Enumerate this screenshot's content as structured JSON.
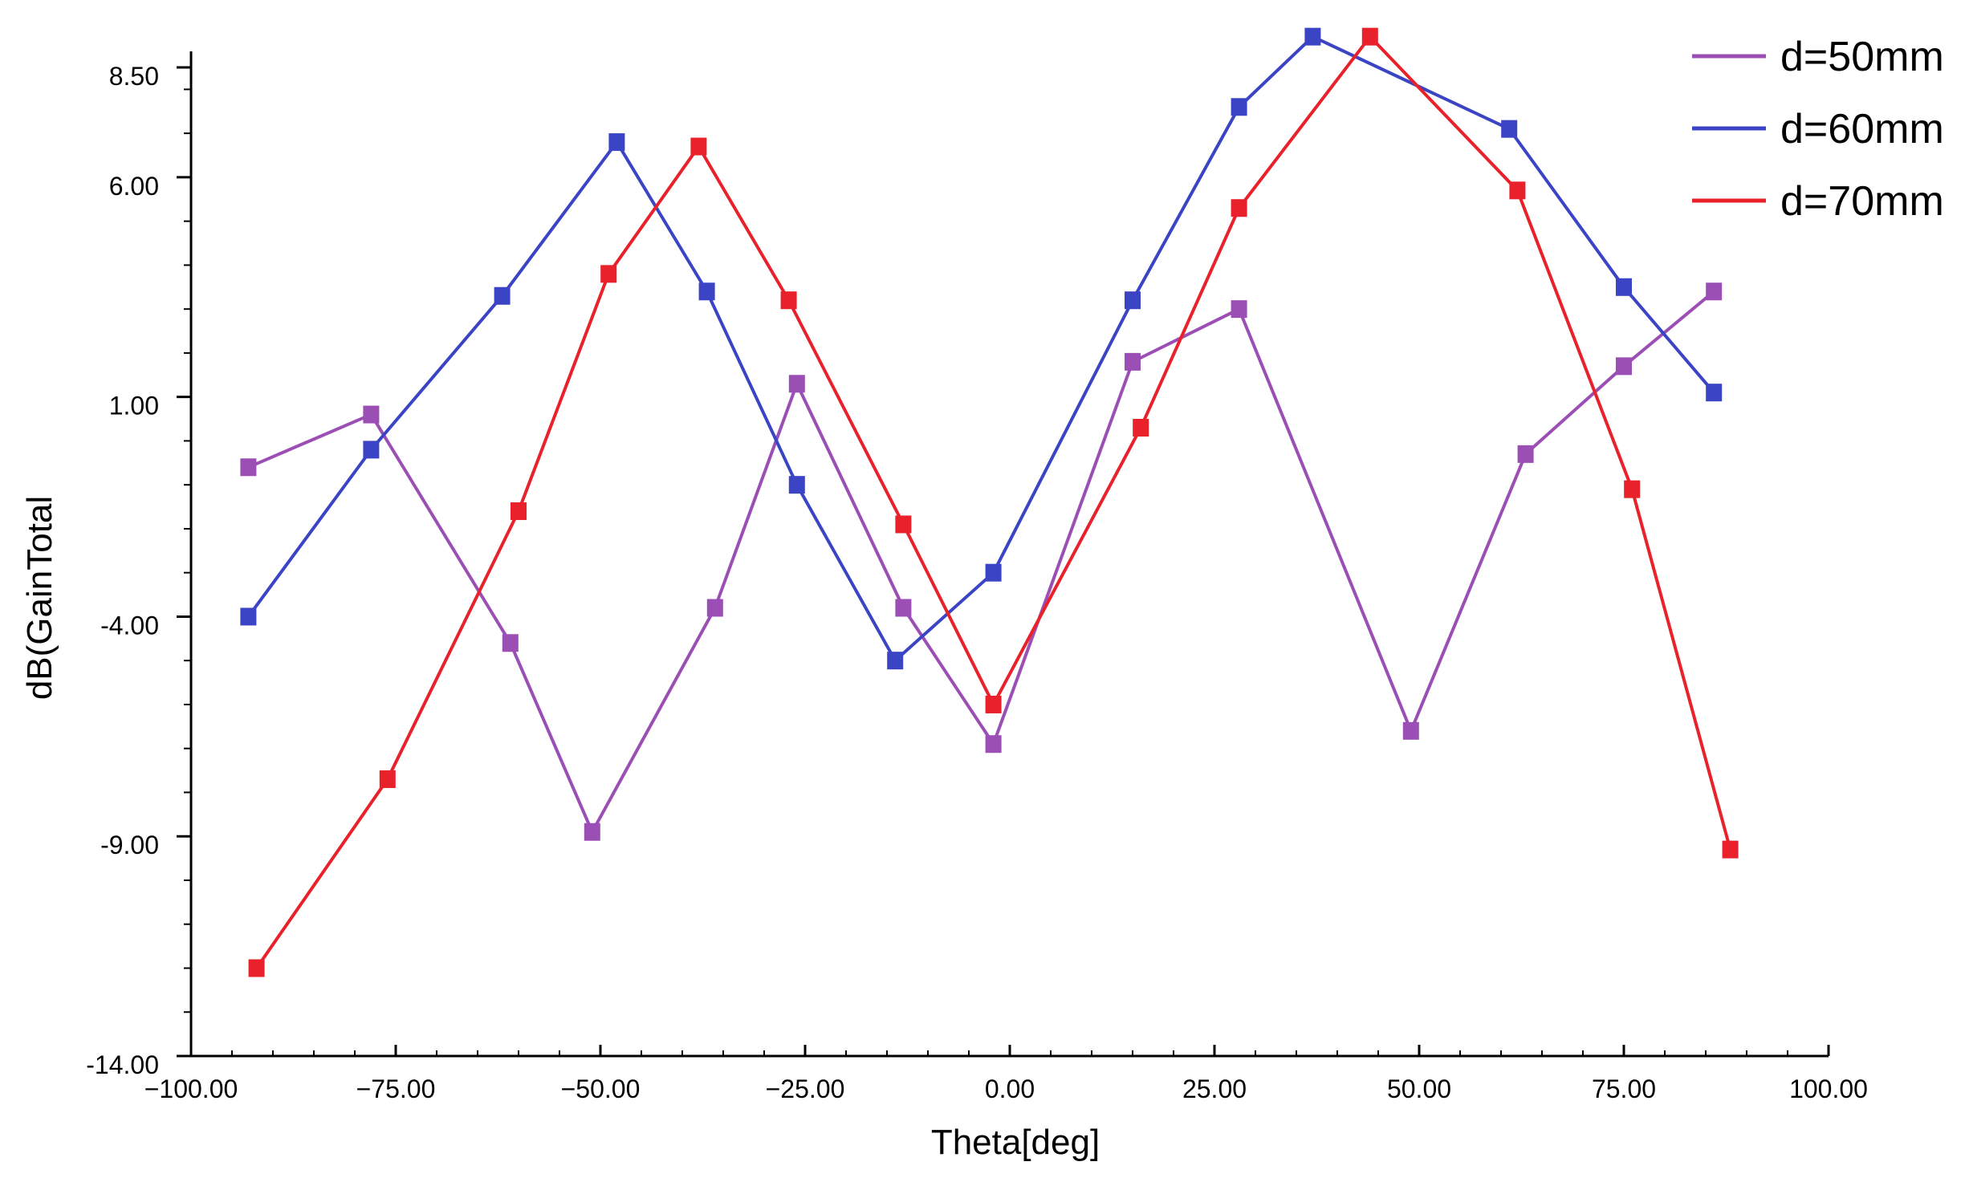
{
  "chart_data": {
    "type": "line",
    "xlabel": "Theta[deg]",
    "ylabel": "dB(GainTotal",
    "xlim": [
      -100,
      100
    ],
    "ylim": [
      -14,
      8.5
    ],
    "xticks": [
      -100,
      -75,
      -50,
      -25,
      0,
      25,
      50,
      75,
      100
    ],
    "xtick_labels": [
      "−100.00",
      "−75.00",
      "−50.00",
      "−25.00",
      "0.00",
      "25.00",
      "50.00",
      "75.00",
      "100.00"
    ],
    "yticks": [
      8.5,
      6,
      1,
      -4,
      -9,
      -14
    ],
    "ytick_labels": [
      "8.50",
      "6.00",
      "1.00",
      "-4.00",
      "-9.00",
      "-14.00"
    ],
    "legend_position": "top-right",
    "series": [
      {
        "name": "d=50mm",
        "color": "#9b4fb5",
        "x": [
          -93,
          -78,
          -61,
          -51,
          -36,
          -26,
          -13,
          -2,
          15,
          28,
          49,
          63,
          75,
          86
        ],
        "y": [
          -0.6,
          0.6,
          -4.6,
          -8.9,
          -3.8,
          1.3,
          -3.8,
          -6.9,
          1.8,
          3.0,
          -6.6,
          -0.3,
          1.7,
          3.4
        ]
      },
      {
        "name": "d=60mm",
        "color": "#3a44c4",
        "x": [
          -93,
          -78,
          -62,
          -48,
          -37,
          -26,
          -14,
          -2,
          15,
          28,
          37,
          61,
          75,
          86
        ],
        "y": [
          -4.0,
          -0.2,
          3.3,
          6.8,
          3.4,
          -1.0,
          -5.0,
          -3.0,
          3.2,
          7.6,
          9.2,
          7.1,
          3.5,
          1.1
        ]
      },
      {
        "name": "d=70mm",
        "color": "#e8212a",
        "x": [
          -92,
          -76,
          -60,
          -49,
          -38,
          -27,
          -13,
          -2,
          16,
          28,
          44,
          62,
          76,
          88
        ],
        "y": [
          -12.0,
          -7.7,
          -1.6,
          3.8,
          6.7,
          3.2,
          -1.9,
          -6.0,
          0.3,
          5.3,
          9.2,
          5.7,
          -1.1,
          -9.3
        ]
      }
    ]
  }
}
